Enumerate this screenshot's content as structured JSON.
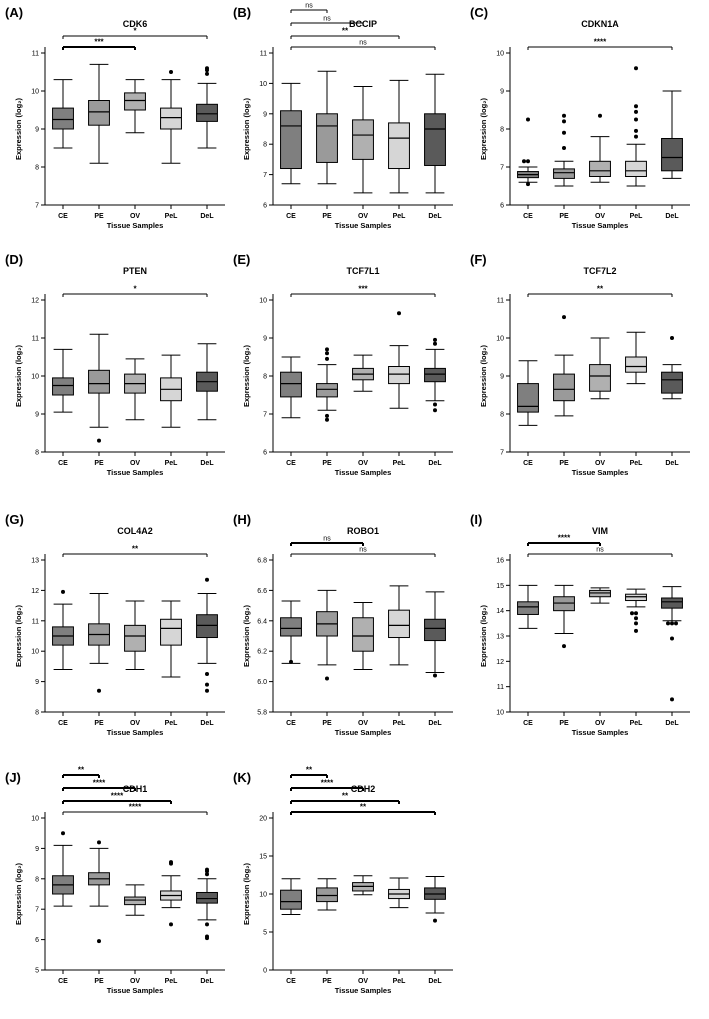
{
  "chart_data": [
    {
      "panel": "(A)",
      "title": "CDK6",
      "type": "box",
      "ylabel": "Expression (log₂)",
      "xlabel": "Tissue Samples",
      "ylim": [
        7,
        11
      ],
      "yticks": [
        7,
        8,
        9,
        10,
        11
      ],
      "categories": [
        "CE",
        "PE",
        "OV",
        "PeL",
        "DeL"
      ],
      "boxes": [
        {
          "min": 8.5,
          "q1": 9.0,
          "median": 9.25,
          "q3": 9.55,
          "max": 10.3,
          "fill": "#7f7f7f",
          "outliers": []
        },
        {
          "min": 8.1,
          "q1": 9.1,
          "median": 9.45,
          "q3": 9.75,
          "max": 10.7,
          "fill": "#9a9a9a",
          "outliers": []
        },
        {
          "min": 8.9,
          "q1": 9.5,
          "median": 9.75,
          "q3": 9.95,
          "max": 10.3,
          "fill": "#b0b0b0",
          "outliers": []
        },
        {
          "min": 8.1,
          "q1": 9.0,
          "median": 9.3,
          "q3": 9.55,
          "max": 10.3,
          "fill": "#d6d6d6",
          "outliers": [
            10.5
          ]
        },
        {
          "min": 8.5,
          "q1": 9.2,
          "median": 9.4,
          "q3": 9.65,
          "max": 10.2,
          "fill": "#5a5a5a",
          "outliers": [
            10.45,
            10.55,
            10.6
          ]
        }
      ],
      "comparisons": [
        {
          "from": 0,
          "to": 4,
          "label": "*",
          "bold": false
        },
        {
          "from": 0,
          "to": 2,
          "label": "***",
          "bold": true
        }
      ]
    },
    {
      "panel": "(B)",
      "title": "BCCIP",
      "type": "box",
      "ylabel": "Expression (log₂)",
      "xlabel": "Tissue Samples",
      "ylim": [
        6,
        11
      ],
      "yticks": [
        6,
        7,
        8,
        9,
        10,
        11
      ],
      "categories": [
        "CE",
        "PE",
        "OV",
        "PeL",
        "DeL"
      ],
      "boxes": [
        {
          "min": 6.7,
          "q1": 7.2,
          "median": 8.6,
          "q3": 9.1,
          "max": 10.0,
          "fill": "#7f7f7f",
          "outliers": []
        },
        {
          "min": 6.7,
          "q1": 7.4,
          "median": 8.6,
          "q3": 9.0,
          "max": 10.4,
          "fill": "#9a9a9a",
          "outliers": []
        },
        {
          "min": 6.4,
          "q1": 7.5,
          "median": 8.3,
          "q3": 8.8,
          "max": 9.9,
          "fill": "#b0b0b0",
          "outliers": []
        },
        {
          "min": 6.4,
          "q1": 7.2,
          "median": 8.2,
          "q3": 8.7,
          "max": 10.1,
          "fill": "#d6d6d6",
          "outliers": []
        },
        {
          "min": 6.4,
          "q1": 7.3,
          "median": 8.5,
          "q3": 9.0,
          "max": 10.3,
          "fill": "#5a5a5a",
          "outliers": []
        }
      ],
      "comparisons": [
        {
          "from": 0,
          "to": 1,
          "label": "ns",
          "bold": false
        },
        {
          "from": 0,
          "to": 2,
          "label": "ns",
          "bold": false
        },
        {
          "from": 0,
          "to": 3,
          "label": "**",
          "bold": false
        },
        {
          "from": 0,
          "to": 4,
          "label": "ns",
          "bold": false
        }
      ]
    },
    {
      "panel": "(C)",
      "title": "CDKN1A",
      "type": "box",
      "ylabel": "Expression (log₂)",
      "xlabel": "Tissue Samples",
      "ylim": [
        6,
        10
      ],
      "yticks": [
        6,
        7,
        8,
        9,
        10
      ],
      "categories": [
        "CE",
        "PE",
        "OV",
        "PeL",
        "DeL"
      ],
      "boxes": [
        {
          "min": 6.6,
          "q1": 6.72,
          "median": 6.8,
          "q3": 6.88,
          "max": 7.0,
          "fill": "#7f7f7f",
          "outliers": [
            6.55,
            7.15,
            7.15,
            8.25
          ]
        },
        {
          "min": 6.5,
          "q1": 6.7,
          "median": 6.85,
          "q3": 6.95,
          "max": 7.15,
          "fill": "#9a9a9a",
          "outliers": [
            7.5,
            7.9,
            8.2,
            8.35
          ]
        },
        {
          "min": 6.6,
          "q1": 6.75,
          "median": 6.9,
          "q3": 7.15,
          "max": 7.8,
          "fill": "#b0b0b0",
          "outliers": [
            8.35
          ]
        },
        {
          "min": 6.5,
          "q1": 6.75,
          "median": 6.9,
          "q3": 7.15,
          "max": 7.6,
          "fill": "#d6d6d6",
          "outliers": [
            7.8,
            7.95,
            8.25,
            8.45,
            8.6,
            9.6
          ]
        },
        {
          "min": 6.7,
          "q1": 6.9,
          "median": 7.25,
          "q3": 7.75,
          "max": 9.0,
          "fill": "#5a5a5a",
          "outliers": []
        }
      ],
      "comparisons": [
        {
          "from": 0,
          "to": 4,
          "label": "****",
          "bold": false
        }
      ]
    },
    {
      "panel": "(D)",
      "title": "PTEN",
      "type": "box",
      "ylabel": "Expression (log₂)",
      "xlabel": "Tissue Samples",
      "ylim": [
        8,
        12
      ],
      "yticks": [
        8,
        9,
        10,
        11,
        12
      ],
      "categories": [
        "CE",
        "PE",
        "OV",
        "PeL",
        "DeL"
      ],
      "boxes": [
        {
          "min": 9.05,
          "q1": 9.5,
          "median": 9.75,
          "q3": 9.95,
          "max": 10.7,
          "fill": "#7f7f7f",
          "outliers": []
        },
        {
          "min": 8.65,
          "q1": 9.55,
          "median": 9.8,
          "q3": 10.15,
          "max": 11.1,
          "fill": "#9a9a9a",
          "outliers": [
            8.3
          ]
        },
        {
          "min": 8.85,
          "q1": 9.55,
          "median": 9.8,
          "q3": 10.05,
          "max": 10.45,
          "fill": "#b0b0b0",
          "outliers": []
        },
        {
          "min": 8.65,
          "q1": 9.35,
          "median": 9.65,
          "q3": 9.95,
          "max": 10.55,
          "fill": "#d6d6d6",
          "outliers": []
        },
        {
          "min": 8.85,
          "q1": 9.6,
          "median": 9.85,
          "q3": 10.1,
          "max": 10.85,
          "fill": "#5a5a5a",
          "outliers": []
        }
      ],
      "comparisons": [
        {
          "from": 0,
          "to": 4,
          "label": "*",
          "bold": false
        }
      ]
    },
    {
      "panel": "(E)",
      "title": "TCF7L1",
      "type": "box",
      "ylabel": "Expression (log₂)",
      "xlabel": "Tissue Samples",
      "ylim": [
        6,
        10
      ],
      "yticks": [
        6,
        7,
        8,
        9,
        10
      ],
      "categories": [
        "CE",
        "PE",
        "OV",
        "PeL",
        "DeL"
      ],
      "boxes": [
        {
          "min": 6.9,
          "q1": 7.45,
          "median": 7.8,
          "q3": 8.1,
          "max": 8.5,
          "fill": "#7f7f7f",
          "outliers": []
        },
        {
          "min": 7.1,
          "q1": 7.45,
          "median": 7.65,
          "q3": 7.8,
          "max": 8.3,
          "fill": "#9a9a9a",
          "outliers": [
            6.85,
            6.95,
            8.45,
            8.6,
            8.7
          ]
        },
        {
          "min": 7.6,
          "q1": 7.9,
          "median": 8.05,
          "q3": 8.2,
          "max": 8.55,
          "fill": "#b0b0b0",
          "outliers": []
        },
        {
          "min": 7.15,
          "q1": 7.8,
          "median": 8.05,
          "q3": 8.25,
          "max": 8.8,
          "fill": "#d6d6d6",
          "outliers": [
            9.65
          ]
        },
        {
          "min": 7.35,
          "q1": 7.85,
          "median": 8.05,
          "q3": 8.2,
          "max": 8.7,
          "fill": "#5a5a5a",
          "outliers": [
            7.1,
            7.25,
            8.85,
            8.95
          ]
        }
      ],
      "comparisons": [
        {
          "from": 0,
          "to": 4,
          "label": "***",
          "bold": false
        }
      ]
    },
    {
      "panel": "(F)",
      "title": "TCF7L2",
      "type": "box",
      "ylabel": "Expression (log₂)",
      "xlabel": "Tissue Samples",
      "ylim": [
        7,
        11
      ],
      "yticks": [
        7,
        8,
        9,
        10,
        11
      ],
      "categories": [
        "CE",
        "PE",
        "OV",
        "PeL",
        "DeL"
      ],
      "boxes": [
        {
          "min": 7.7,
          "q1": 8.05,
          "median": 8.2,
          "q3": 8.8,
          "max": 9.4,
          "fill": "#7f7f7f",
          "outliers": []
        },
        {
          "min": 7.95,
          "q1": 8.35,
          "median": 8.65,
          "q3": 9.05,
          "max": 9.55,
          "fill": "#9a9a9a",
          "outliers": [
            10.55
          ]
        },
        {
          "min": 8.4,
          "q1": 8.6,
          "median": 9.0,
          "q3": 9.3,
          "max": 10.0,
          "fill": "#b0b0b0",
          "outliers": []
        },
        {
          "min": 8.8,
          "q1": 9.1,
          "median": 9.25,
          "q3": 9.5,
          "max": 10.15,
          "fill": "#d6d6d6",
          "outliers": []
        },
        {
          "min": 8.4,
          "q1": 8.55,
          "median": 8.9,
          "q3": 9.1,
          "max": 9.3,
          "fill": "#5a5a5a",
          "outliers": [
            10.0
          ]
        }
      ],
      "comparisons": [
        {
          "from": 0,
          "to": 4,
          "label": "**",
          "bold": false
        }
      ]
    },
    {
      "panel": "(G)",
      "title": "COL4A2",
      "type": "box",
      "ylabel": "Expression (log₂)",
      "xlabel": "Tissue Samples",
      "ylim": [
        8,
        13
      ],
      "yticks": [
        8,
        9,
        10,
        11,
        12,
        13
      ],
      "categories": [
        "CE",
        "PE",
        "OV",
        "PeL",
        "DeL"
      ],
      "boxes": [
        {
          "min": 9.4,
          "q1": 10.2,
          "median": 10.5,
          "q3": 10.8,
          "max": 11.55,
          "fill": "#7f7f7f",
          "outliers": [
            11.95
          ]
        },
        {
          "min": 9.6,
          "q1": 10.2,
          "median": 10.55,
          "q3": 10.9,
          "max": 11.9,
          "fill": "#9a9a9a",
          "outliers": [
            8.7
          ]
        },
        {
          "min": 9.4,
          "q1": 10.0,
          "median": 10.5,
          "q3": 10.85,
          "max": 11.65,
          "fill": "#b0b0b0",
          "outliers": []
        },
        {
          "min": 9.15,
          "q1": 10.2,
          "median": 10.75,
          "q3": 11.05,
          "max": 11.65,
          "fill": "#d6d6d6",
          "outliers": []
        },
        {
          "min": 9.6,
          "q1": 10.45,
          "median": 10.85,
          "q3": 11.2,
          "max": 11.9,
          "fill": "#5a5a5a",
          "outliers": [
            8.7,
            8.9,
            9.25,
            12.35
          ]
        }
      ],
      "comparisons": [
        {
          "from": 0,
          "to": 4,
          "label": "**",
          "bold": false
        }
      ]
    },
    {
      "panel": "(H)",
      "title": "ROBO1",
      "type": "box",
      "ylabel": "Expression (log₂)",
      "xlabel": "Tissue Samples",
      "ylim": [
        5.8,
        6.8
      ],
      "yticks": [
        5.8,
        6.0,
        6.2,
        6.4,
        6.6,
        6.8
      ],
      "categories": [
        "CE",
        "PE",
        "OV",
        "PeL",
        "DeL"
      ],
      "boxes": [
        {
          "min": 6.12,
          "q1": 6.3,
          "median": 6.35,
          "q3": 6.42,
          "max": 6.53,
          "fill": "#7f7f7f",
          "outliers": [
            6.13
          ]
        },
        {
          "min": 6.11,
          "q1": 6.3,
          "median": 6.38,
          "q3": 6.46,
          "max": 6.6,
          "fill": "#9a9a9a",
          "outliers": [
            6.02
          ]
        },
        {
          "min": 6.08,
          "q1": 6.2,
          "median": 6.3,
          "q3": 6.42,
          "max": 6.52,
          "fill": "#b0b0b0",
          "outliers": []
        },
        {
          "min": 6.11,
          "q1": 6.29,
          "median": 6.37,
          "q3": 6.47,
          "max": 6.63,
          "fill": "#d6d6d6",
          "outliers": []
        },
        {
          "min": 6.06,
          "q1": 6.27,
          "median": 6.35,
          "q3": 6.41,
          "max": 6.59,
          "fill": "#5a5a5a",
          "outliers": [
            6.04
          ]
        }
      ],
      "comparisons": [
        {
          "from": 0,
          "to": 2,
          "label": "ns",
          "bold": true
        },
        {
          "from": 0,
          "to": 4,
          "label": "ns",
          "bold": false
        }
      ]
    },
    {
      "panel": "(I)",
      "title": "VIM",
      "type": "box",
      "ylabel": "Expression (log₂)",
      "xlabel": "Tissue Samples",
      "ylim": [
        10,
        16
      ],
      "yticks": [
        10,
        11,
        12,
        13,
        14,
        15,
        16
      ],
      "categories": [
        "CE",
        "PE",
        "OV",
        "PeL",
        "DeL"
      ],
      "boxes": [
        {
          "min": 13.3,
          "q1": 13.85,
          "median": 14.15,
          "q3": 14.35,
          "max": 15.0,
          "fill": "#7f7f7f",
          "outliers": []
        },
        {
          "min": 13.1,
          "q1": 14.0,
          "median": 14.3,
          "q3": 14.55,
          "max": 15.0,
          "fill": "#9a9a9a",
          "outliers": [
            12.6
          ]
        },
        {
          "min": 14.3,
          "q1": 14.55,
          "median": 14.7,
          "q3": 14.8,
          "max": 14.9,
          "fill": "#b0b0b0",
          "outliers": []
        },
        {
          "min": 14.15,
          "q1": 14.4,
          "median": 14.55,
          "q3": 14.65,
          "max": 14.85,
          "fill": "#d6d6d6",
          "outliers": [
            13.2,
            13.5,
            13.7,
            13.9,
            13.9
          ]
        },
        {
          "min": 13.6,
          "q1": 14.1,
          "median": 14.35,
          "q3": 14.5,
          "max": 14.95,
          "fill": "#5a5a5a",
          "outliers": [
            10.5,
            12.9,
            13.5,
            13.5,
            13.5
          ]
        }
      ],
      "comparisons": [
        {
          "from": 0,
          "to": 2,
          "label": "****",
          "bold": true
        },
        {
          "from": 0,
          "to": 4,
          "label": "ns",
          "bold": false
        }
      ]
    },
    {
      "panel": "(J)",
      "title": "CDH1",
      "type": "box",
      "ylabel": "Expression (log₂)",
      "xlabel": "Tissue Samples",
      "ylim": [
        5,
        10
      ],
      "yticks": [
        5,
        6,
        7,
        8,
        9,
        10
      ],
      "categories": [
        "CE",
        "PE",
        "OV",
        "PeL",
        "DeL"
      ],
      "boxes": [
        {
          "min": 7.1,
          "q1": 7.5,
          "median": 7.8,
          "q3": 8.1,
          "max": 9.1,
          "fill": "#7f7f7f",
          "outliers": [
            9.5
          ]
        },
        {
          "min": 7.1,
          "q1": 7.8,
          "median": 8.0,
          "q3": 8.2,
          "max": 9.0,
          "fill": "#9a9a9a",
          "outliers": [
            5.95,
            9.2
          ]
        },
        {
          "min": 6.8,
          "q1": 7.15,
          "median": 7.3,
          "q3": 7.4,
          "max": 7.8,
          "fill": "#b0b0b0",
          "outliers": []
        },
        {
          "min": 7.05,
          "q1": 7.3,
          "median": 7.45,
          "q3": 7.6,
          "max": 8.1,
          "fill": "#d6d6d6",
          "outliers": [
            6.5,
            8.5,
            8.55
          ]
        },
        {
          "min": 6.65,
          "q1": 7.2,
          "median": 7.35,
          "q3": 7.55,
          "max": 8.0,
          "fill": "#5a5a5a",
          "outliers": [
            6.05,
            6.1,
            6.5,
            8.15,
            8.25,
            8.3
          ]
        }
      ],
      "comparisons": [
        {
          "from": 0,
          "to": 1,
          "label": "**",
          "bold": true
        },
        {
          "from": 0,
          "to": 2,
          "label": "****",
          "bold": true
        },
        {
          "from": 0,
          "to": 3,
          "label": "****",
          "bold": true
        },
        {
          "from": 0,
          "to": 4,
          "label": "****",
          "bold": false
        }
      ]
    },
    {
      "panel": "(K)",
      "title": "CDH2",
      "type": "box",
      "ylabel": "Expression (log₂)",
      "xlabel": "Tissue Samples",
      "ylim": [
        0,
        20
      ],
      "yticks": [
        0,
        5,
        10,
        15,
        20
      ],
      "categories": [
        "CE",
        "PE",
        "OV",
        "PeL",
        "DeL"
      ],
      "boxes": [
        {
          "min": 7.3,
          "q1": 8.0,
          "median": 9.0,
          "q3": 10.5,
          "max": 12.0,
          "fill": "#7f7f7f",
          "outliers": []
        },
        {
          "min": 7.9,
          "q1": 9.0,
          "median": 9.8,
          "q3": 10.8,
          "max": 12.0,
          "fill": "#9a9a9a",
          "outliers": []
        },
        {
          "min": 9.9,
          "q1": 10.4,
          "median": 11.0,
          "q3": 11.5,
          "max": 12.4,
          "fill": "#b0b0b0",
          "outliers": []
        },
        {
          "min": 8.2,
          "q1": 9.4,
          "median": 10.0,
          "q3": 10.6,
          "max": 12.1,
          "fill": "#d6d6d6",
          "outliers": []
        },
        {
          "min": 7.5,
          "q1": 9.3,
          "median": 10.0,
          "q3": 10.8,
          "max": 12.3,
          "fill": "#5a5a5a",
          "outliers": [
            6.5
          ]
        }
      ],
      "comparisons": [
        {
          "from": 0,
          "to": 1,
          "label": "**",
          "bold": true
        },
        {
          "from": 0,
          "to": 2,
          "label": "****",
          "bold": true
        },
        {
          "from": 0,
          "to": 3,
          "label": "**",
          "bold": true
        },
        {
          "from": 0,
          "to": 4,
          "label": "**",
          "bold": true
        }
      ]
    }
  ]
}
